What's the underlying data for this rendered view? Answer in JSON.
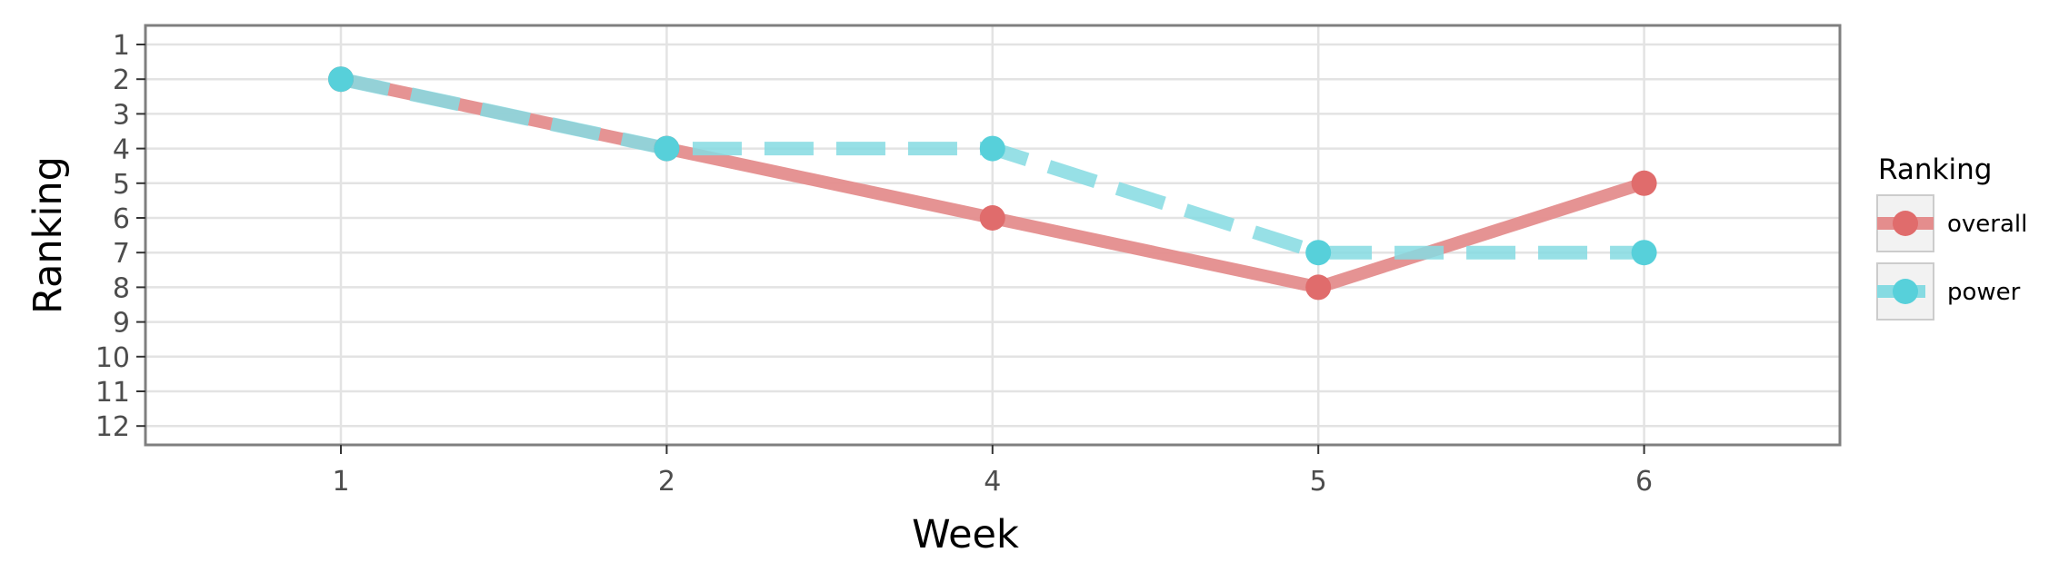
{
  "chart_data": {
    "type": "line",
    "title": "",
    "xlabel": "Week",
    "ylabel": "Ranking",
    "x": [
      1,
      2,
      4,
      5,
      6
    ],
    "x_tick_labels": [
      "1",
      "2",
      "4",
      "5",
      "6"
    ],
    "x_scale": "categorical",
    "y_tick_labels": [
      "1",
      "2",
      "3",
      "4",
      "5",
      "6",
      "7",
      "8",
      "9",
      "10",
      "11",
      "12"
    ],
    "ylim": [
      1,
      12
    ],
    "y_reversed": true,
    "grid": true,
    "legend": {
      "title": "Ranking",
      "placement": "right"
    },
    "series": [
      {
        "name": "overall",
        "values": [
          2,
          4,
          6,
          8,
          5
        ],
        "color": "#e06c6c",
        "line_color": "#e48d8d",
        "line_style": "solid"
      },
      {
        "name": "power",
        "values": [
          2,
          4,
          4,
          7,
          7
        ],
        "color": "#57d0da",
        "line_color": "#86dbe2",
        "line_style": "dashed"
      }
    ]
  },
  "colors": {
    "panel_border": "#7f7f7f",
    "grid": "#e3e3e3",
    "legend_key_background": "#f2f2f2",
    "legend_key_border": "#cccccc"
  }
}
